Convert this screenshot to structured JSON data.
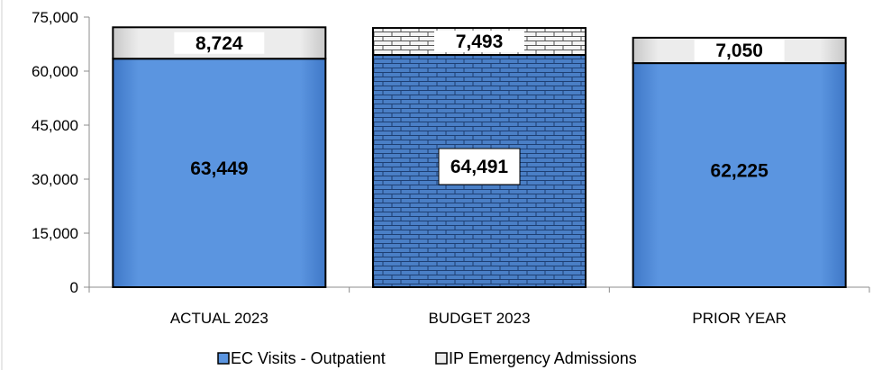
{
  "chart_data": {
    "type": "bar",
    "stacked": true,
    "categories": [
      "ACTUAL 2023",
      "BUDGET 2023",
      "PRIOR YEAR"
    ],
    "series": [
      {
        "name": "EC Visits - Outpatient",
        "values": [
          63449,
          64491,
          62225
        ],
        "labels": [
          "63,449",
          "64,491",
          "62,225"
        ],
        "color": "#5b95e0"
      },
      {
        "name": "IP Emergency Admissions",
        "values": [
          8724,
          7493,
          7050
        ],
        "labels": [
          "8,724",
          "7,493",
          "7,050"
        ],
        "color": "#e6e6e6"
      }
    ],
    "patterned_category": "BUDGET 2023",
    "ylim": [
      0,
      75000
    ],
    "yticks": [
      0,
      15000,
      30000,
      45000,
      60000,
      75000
    ],
    "ytick_labels": [
      "0",
      "15,000",
      "30,000",
      "45,000",
      "60,000",
      "75,000"
    ],
    "grid": false,
    "legend_position": "bottom"
  }
}
